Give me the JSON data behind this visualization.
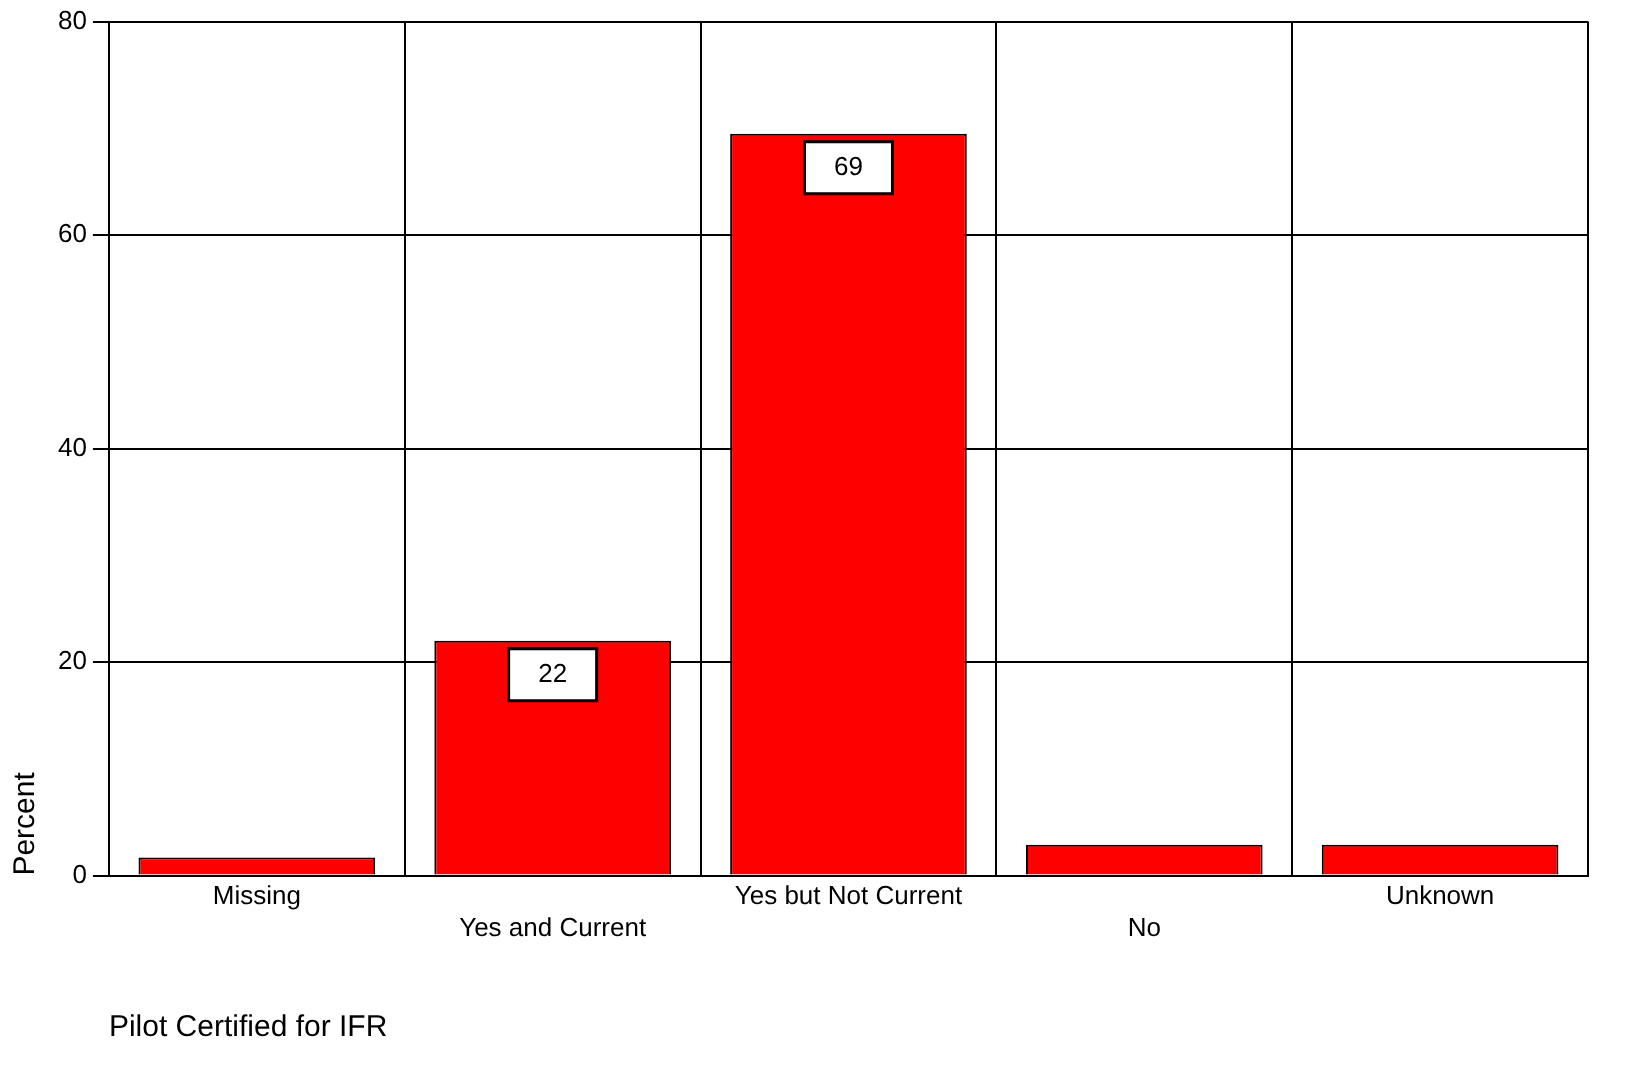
{
  "chart_data": {
    "type": "bar",
    "xlabel": "Pilot Certified for IFR",
    "ylabel": "Percent",
    "categories": [
      "Missing",
      "Yes and Current",
      "Yes but Not Current",
      "No",
      "Unknown"
    ],
    "values": [
      1.7,
      22,
      69.5,
      2.9,
      2.9
    ],
    "value_labels": [
      null,
      "22",
      "69",
      null,
      null
    ],
    "color": "#ff0000",
    "ylim": [
      0,
      80
    ],
    "yticks": [
      0,
      20,
      40,
      60,
      80
    ],
    "grid": true,
    "legend": false
  }
}
